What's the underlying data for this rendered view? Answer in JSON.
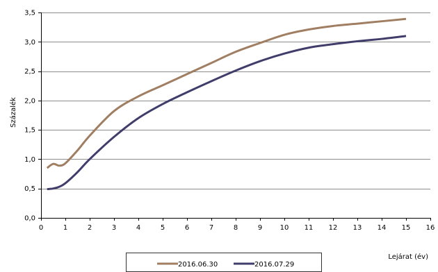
{
  "chart_data": {
    "type": "line",
    "xlabel": "Lejárat (év)",
    "ylabel": "Százalék",
    "xlim": [
      0,
      16
    ],
    "ylim": [
      0,
      3.5
    ],
    "x_ticks": [
      0,
      1,
      2,
      3,
      4,
      5,
      6,
      7,
      8,
      9,
      10,
      11,
      12,
      13,
      14,
      15,
      16
    ],
    "y_ticks": [
      "0,0",
      "0,5",
      "1,0",
      "1,5",
      "2,0",
      "2,5",
      "3,0",
      "3,5"
    ],
    "y_tick_values": [
      0,
      0.5,
      1.0,
      1.5,
      2.0,
      2.5,
      3.0,
      3.5
    ],
    "grid": "horizontal",
    "legend_position": "bottom",
    "series": [
      {
        "name": "2016.06.30",
        "color": "#a07e62",
        "x": [
          0.25,
          0.5,
          0.75,
          1,
          1.5,
          2,
          3,
          4,
          5,
          6,
          7,
          8,
          9,
          10,
          11,
          12,
          13,
          14,
          15
        ],
        "values": [
          0.85,
          0.92,
          0.89,
          0.93,
          1.15,
          1.4,
          1.82,
          2.07,
          2.26,
          2.45,
          2.64,
          2.83,
          2.98,
          3.12,
          3.21,
          3.27,
          3.31,
          3.35,
          3.39
        ]
      },
      {
        "name": "2016.07.29",
        "color": "#403d6b",
        "x": [
          0.25,
          0.5,
          0.75,
          1,
          1.5,
          2,
          3,
          4,
          5,
          6,
          7,
          8,
          9,
          10,
          11,
          12,
          13,
          14,
          15
        ],
        "values": [
          0.49,
          0.5,
          0.53,
          0.59,
          0.78,
          1.0,
          1.38,
          1.7,
          1.94,
          2.14,
          2.33,
          2.51,
          2.67,
          2.8,
          2.9,
          2.96,
          3.01,
          3.05,
          3.1
        ]
      }
    ]
  }
}
